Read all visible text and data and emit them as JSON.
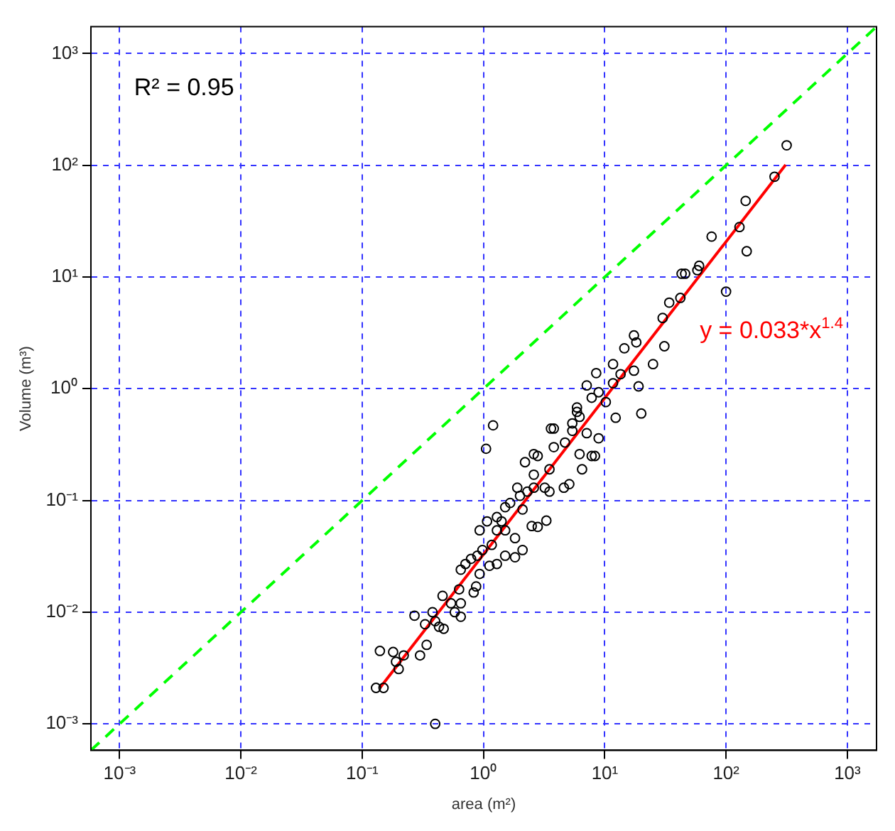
{
  "chart_data": {
    "type": "scatter",
    "xlabel": "area (m²)",
    "ylabel": "Volume (m³)",
    "log": "xy",
    "grid": true,
    "xlim": [
      0.00058,
      1740
    ],
    "ylim": [
      0.00058,
      1740
    ],
    "xticks": [
      {
        "value": 0.001,
        "label": "10⁻³"
      },
      {
        "value": 0.01,
        "label": "10⁻²"
      },
      {
        "value": 0.1,
        "label": "10⁻¹"
      },
      {
        "value": 1,
        "label": "10⁰"
      },
      {
        "value": 10,
        "label": "10¹"
      },
      {
        "value": 100,
        "label": "10²"
      },
      {
        "value": 1000,
        "label": "10³"
      }
    ],
    "yticks": [
      {
        "value": 0.001,
        "label": "10⁻³"
      },
      {
        "value": 0.01,
        "label": "10⁻²"
      },
      {
        "value": 0.1,
        "label": "10⁻¹"
      },
      {
        "value": 1,
        "label": "10⁰"
      },
      {
        "value": 10,
        "label": "10¹"
      },
      {
        "value": 100,
        "label": "10²"
      },
      {
        "value": 1000,
        "label": "10³"
      }
    ],
    "annotations": [
      "R² = 0.95",
      "y = 0.033*x$^{1.4}$"
    ],
    "series": [
      {
        "marker": "circle",
        "color": "#000000",
        "x": [
          0.13,
          0.15,
          0.14,
          0.18,
          0.22,
          0.3,
          0.19,
          0.2,
          0.34,
          0.27,
          0.33,
          0.38,
          0.43,
          0.47,
          0.4,
          0.46,
          0.54,
          0.58,
          0.65,
          0.65,
          0.63,
          0.65,
          0.79,
          0.83,
          0.87,
          0.4,
          1.2,
          1.05,
          0.93,
          0.98,
          0.93,
          1.12,
          1.29,
          1.51,
          1.82,
          2.1,
          1.07,
          1.29,
          1.51,
          1.51,
          1.82,
          1.66,
          2.0,
          2.1,
          2.5,
          2.8,
          3.3,
          1.9,
          2.3,
          2.6,
          3.2,
          3.5,
          4.6,
          5.1,
          2.2,
          2.8,
          2.6,
          3.5,
          3.8,
          4.7,
          6.5,
          6.2,
          3.6,
          5.4,
          5.9,
          7.1,
          7.8,
          1.29,
          1.41,
          1.17,
          0.89,
          0.71,
          316,
          251,
          145,
          129,
          148,
          76,
          100,
          60,
          58,
          46,
          43,
          42,
          34,
          30,
          31,
          25,
          17.4,
          18.2,
          14.5,
          17.4,
          19,
          20,
          11.7,
          13.5,
          8.5,
          7.1,
          11.7,
          12.3,
          8.9,
          8.3,
          5.9,
          6.2,
          5.4,
          3.8,
          2.6,
          8.9,
          10.2,
          7.8
        ],
        "values": [
          0.0021,
          0.0021,
          0.0045,
          0.0044,
          0.0041,
          0.0041,
          0.0036,
          0.0031,
          0.0051,
          0.0093,
          0.0078,
          0.01,
          0.0074,
          0.0071,
          0.0083,
          0.014,
          0.012,
          0.01,
          0.012,
          0.0091,
          0.016,
          0.024,
          0.03,
          0.015,
          0.017,
          0.001,
          0.47,
          0.29,
          0.054,
          0.036,
          0.022,
          0.026,
          0.027,
          0.032,
          0.031,
          0.036,
          0.065,
          0.071,
          0.087,
          0.054,
          0.046,
          0.095,
          0.11,
          0.083,
          0.059,
          0.058,
          0.066,
          0.13,
          0.12,
          0.13,
          0.13,
          0.12,
          0.13,
          0.14,
          0.22,
          0.25,
          0.17,
          0.19,
          0.3,
          0.33,
          0.19,
          0.26,
          0.44,
          0.49,
          0.62,
          0.4,
          0.25,
          0.054,
          0.065,
          0.04,
          0.032,
          0.027,
          151,
          79,
          48,
          28,
          17,
          23,
          7.4,
          12.6,
          11.5,
          10.7,
          10.7,
          6.5,
          5.9,
          4.3,
          2.4,
          1.66,
          3.0,
          2.6,
          2.3,
          1.45,
          1.05,
          0.6,
          1.66,
          1.35,
          1.38,
          1.07,
          1.12,
          0.55,
          0.36,
          0.25,
          0.68,
          0.56,
          0.42,
          0.44,
          0.26,
          0.93,
          0.76,
          0.83
        ]
      },
      {
        "type": "line",
        "marker": "none",
        "color": "#ff0000",
        "x": [
          0.14,
          310
        ],
        "values": [
          0.0021,
          101
        ]
      },
      {
        "type": "line",
        "marker": "none",
        "color": "#00ff00",
        "line_style": "dashed",
        "x": [
          0.00058,
          1740
        ],
        "values": [
          0.00058,
          1740
        ]
      }
    ]
  }
}
